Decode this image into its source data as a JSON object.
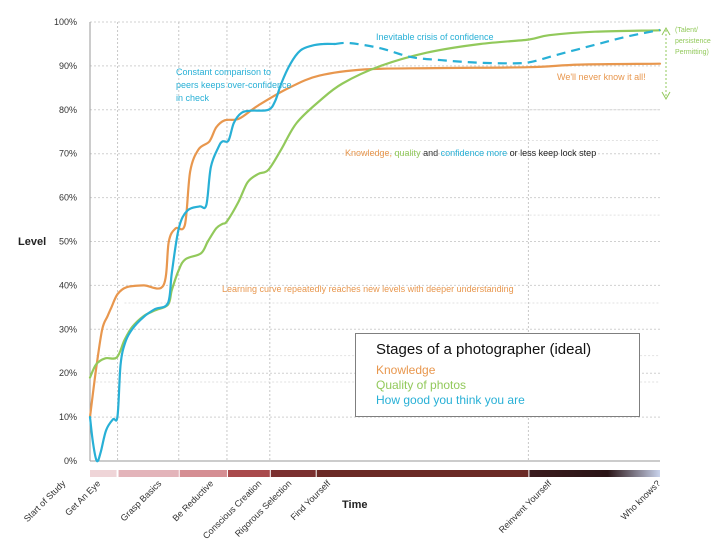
{
  "chart_data": {
    "type": "line",
    "title": "Stages of a photographer (ideal)",
    "xlabel": "Time",
    "ylabel": "Level",
    "ylim": [
      0,
      100
    ],
    "yticks": [
      "0%",
      "10%",
      "20%",
      "30%",
      "40%",
      "50%",
      "60%",
      "70%",
      "80%",
      "90%",
      "100%"
    ],
    "grid": true,
    "legend": "inset lower-right",
    "stages": [
      "Start of Study",
      "Get An Eye",
      "Grasp Basics",
      "Be Reductive",
      "Conscious Creation",
      "Rigorous Selection",
      "Find Yourself",
      "Reinvent Yourself",
      "Who knows?"
    ],
    "series": [
      {
        "name": "Knowledge",
        "color": "#e8974e",
        "points": [
          [
            0,
            10
          ],
          [
            0.8,
            21
          ],
          [
            1.6,
            30
          ],
          [
            2.3,
            33
          ],
          [
            2.8,
            35
          ],
          [
            3.6,
            38
          ],
          [
            4.8,
            39.6
          ],
          [
            7,
            40
          ],
          [
            9.6,
            40
          ],
          [
            10.3,
            50
          ],
          [
            11.2,
            53
          ],
          [
            12.4,
            53.8
          ],
          [
            13.1,
            66
          ],
          [
            14.2,
            71
          ],
          [
            15.6,
            72.8
          ],
          [
            16.5,
            76
          ],
          [
            17.6,
            77.6
          ],
          [
            19.5,
            78
          ],
          [
            22,
            81
          ],
          [
            26,
            85
          ],
          [
            30,
            87.8
          ],
          [
            36,
            89.2
          ],
          [
            45,
            89.5
          ],
          [
            57.3,
            89.7
          ],
          [
            64,
            90.3
          ],
          [
            74.5,
            90.5
          ]
        ]
      },
      {
        "name": "Quality of photos",
        "color": "#92c95b",
        "points": [
          [
            0,
            19
          ],
          [
            0.8,
            22
          ],
          [
            2.0,
            23.4
          ],
          [
            3.5,
            23.6
          ],
          [
            4.5,
            27.5
          ],
          [
            5.5,
            30.5
          ],
          [
            7,
            33
          ],
          [
            8.5,
            34.3
          ],
          [
            10.2,
            35.6
          ],
          [
            10.7,
            39
          ],
          [
            11.6,
            43.5
          ],
          [
            12.5,
            46
          ],
          [
            14.5,
            47.3
          ],
          [
            15.4,
            50
          ],
          [
            16.5,
            53
          ],
          [
            17.3,
            54
          ],
          [
            17.9,
            54.6
          ],
          [
            19.4,
            59
          ],
          [
            20.6,
            63.5
          ],
          [
            22,
            65.4
          ],
          [
            23.3,
            66.3
          ],
          [
            25,
            71
          ],
          [
            27,
            77
          ],
          [
            30,
            82
          ],
          [
            33,
            86
          ],
          [
            38,
            90
          ],
          [
            44,
            93
          ],
          [
            51,
            95
          ],
          [
            57.3,
            96
          ],
          [
            60,
            97
          ],
          [
            66,
            97.8
          ],
          [
            74.5,
            98.1
          ]
        ]
      },
      {
        "name": "How good you think you are",
        "color": "#28b0d6",
        "points": [
          [
            0,
            10
          ],
          [
            0.4,
            4
          ],
          [
            0.9,
            0
          ],
          [
            1.4,
            2
          ],
          [
            2.1,
            7
          ],
          [
            3.0,
            9.5
          ],
          [
            3.6,
            10.2
          ],
          [
            4.0,
            22
          ],
          [
            4.6,
            27
          ],
          [
            5.5,
            30
          ],
          [
            7,
            32.8
          ],
          [
            8.5,
            34.6
          ],
          [
            10.2,
            36
          ],
          [
            10.7,
            43
          ],
          [
            11.6,
            53
          ],
          [
            12.7,
            57
          ],
          [
            14.3,
            58
          ],
          [
            15.2,
            58.3
          ],
          [
            15.8,
            67
          ],
          [
            16.8,
            71.5
          ],
          [
            17.3,
            72.8
          ],
          [
            18.1,
            73
          ],
          [
            18.8,
            77
          ],
          [
            19.8,
            79.3
          ],
          [
            21,
            79.8
          ],
          [
            23.3,
            80
          ],
          [
            24.2,
            82
          ],
          [
            25,
            86
          ],
          [
            26.2,
            90.5
          ],
          [
            27.5,
            93.5
          ],
          [
            29,
            94.6
          ],
          [
            30.5,
            95
          ],
          [
            32,
            95
          ]
        ],
        "dashed_points": [
          [
            32,
            95
          ],
          [
            34,
            95.2
          ],
          [
            38,
            94
          ],
          [
            42,
            92
          ],
          [
            46,
            91.3
          ],
          [
            50,
            90.8
          ],
          [
            54,
            90.6
          ],
          [
            57.3,
            90.8
          ],
          [
            61,
            92.5
          ],
          [
            66,
            94.8
          ],
          [
            70,
            96.6
          ],
          [
            74.5,
            98.2
          ]
        ]
      }
    ],
    "annotations": [
      {
        "text": "Constant comparison to peers keeps over-confidence in check",
        "color": "#28b0d6"
      },
      {
        "text": "Inevitable crisis of confidence",
        "color": "#28b0d6"
      },
      {
        "text": "We'll never know it all!",
        "color": "#e8974e"
      },
      {
        "text": "(Talent/ persistence Permitting)",
        "color": "#92c95b"
      },
      {
        "text": "Learning curve repeatedly reaches new levels with deeper understanding",
        "color": "#e8974e"
      },
      {
        "text": "Knowledge, quality and confidence more or less keep lock step",
        "color": "#e8974e"
      }
    ],
    "timeline_colors": [
      "#efd5d8",
      "#e3b4ba",
      "#d58e93",
      "#a94a4c",
      "#7b3030",
      "#6b2a26",
      "#3b1c1e",
      "#c9d3ec"
    ]
  },
  "labels": {
    "ann_constant_1": "Constant comparison  to",
    "ann_constant_2": "peers keeps over-confidence",
    "ann_constant_3": "in check",
    "ann_crisis": "Inevitable crisis of confidence",
    "ann_never": "We'll never know it all!",
    "ann_talent_1": "(Talent/",
    "ann_talent_2": "persistence",
    "ann_talent_3": "Permitting)",
    "ann_learning": "Learning curve repeatedly reaches new levels with deeper understanding",
    "lock_knowledge": "Knowledge, ",
    "lock_quality": "quality ",
    "lock_and": "and ",
    "lock_confidence": "confidence more ",
    "lock_rest": "or less keep lock step"
  },
  "legend": {
    "title": "Stages of a photographer (ideal)",
    "items": [
      "Knowledge",
      "Quality of photos",
      "How good you think you are"
    ]
  }
}
